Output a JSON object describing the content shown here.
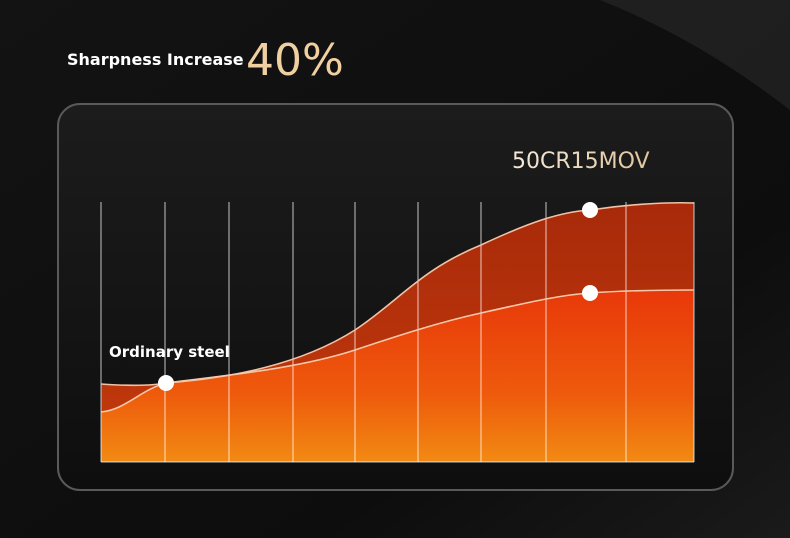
{
  "header": {
    "label": "Sharpness Increase",
    "value": "40%"
  },
  "chart": {
    "series_label": "50CR15MOV",
    "baseline_label": "Ordinary steel"
  }
}
